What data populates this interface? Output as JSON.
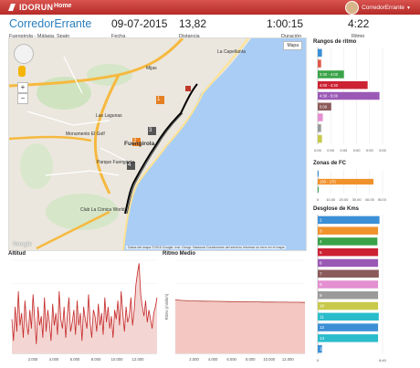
{
  "header": {
    "brand": "IDORUN",
    "nav_home": "Home",
    "user_name": "CorredorErrante"
  },
  "stats": {
    "name": "CorredorErrante",
    "location": "Fuengirola - Málaga, Spain",
    "date": "09-07-2015",
    "date_label": "Fecha",
    "distance": "13,82",
    "distance_label": "Distancia",
    "duration": "1:00:15",
    "duration_label": "Duración",
    "pace": "4:22",
    "pace_label": "Ritmo"
  },
  "map": {
    "type_button": "Mapa",
    "places": [
      "La Capellanía",
      "Fuengirola",
      "Mijas",
      "Las Lagunas",
      "Parque Fuengirola",
      "Club La Cónica World",
      "Monumento El Golf"
    ],
    "markers": [
      "1",
      "2",
      "3",
      "4"
    ],
    "footer": "Datos del mapa ©2015 Google, Inst. Geogr. Nacional   Condiciones del servicio   Informar un error en el mapa",
    "logo": "Google"
  },
  "panels": {
    "rangos_title": "Rangos de ritmo",
    "zonas_title": "Zonas de FC",
    "desglose_title": "Desglose de Kms",
    "altitud_title": "Altitud",
    "ritmo_title": "Ritmo Medio"
  },
  "chart_data": [
    {
      "type": "bar",
      "title": "Rangos de ritmo",
      "orientation": "horizontal",
      "categories": [
        "",
        "",
        "3:30 - 4:00",
        "4:00 - 4:30",
        "4:30 - 5:00",
        "5:00",
        "",
        "",
        ""
      ],
      "values": [
        0.5,
        0.4,
        3.1,
        5.9,
        7.3,
        1.6,
        0.6,
        0.4,
        0.5
      ],
      "colors": [
        "#3b8fd6",
        "#e05a4a",
        "#3aa34a",
        "#cc2233",
        "#9b59b6",
        "#8b5a5a",
        "#e38fd1",
        "#9a9a9a",
        "#c8c94a"
      ],
      "xticks": [
        "0:00",
        "0:00",
        "0:00",
        "0:00",
        "0:00",
        "0:00"
      ]
    },
    {
      "type": "bar",
      "title": "Zonas de FC",
      "orientation": "horizontal",
      "categories": [
        "",
        "150 - 170",
        ""
      ],
      "values": [
        0.3,
        43,
        0.3
      ],
      "colors": [
        "#3b8fd6",
        "#f0922b",
        "#3aa34a"
      ],
      "xticks": [
        "0",
        "10.00",
        "20.00",
        "30.00",
        "40.00",
        "50.00"
      ],
      "xlim": [
        0,
        50
      ]
    },
    {
      "type": "bar",
      "title": "Desglose de Kms",
      "orientation": "horizontal",
      "categories": [
        "2",
        "3",
        "4",
        "5",
        "6",
        "7",
        "8",
        "9",
        "10",
        "11",
        "12",
        "13",
        "14"
      ],
      "values": [
        4.4,
        4.3,
        4.25,
        4.3,
        4.3,
        4.35,
        4.3,
        4.3,
        4.3,
        4.35,
        4.3,
        4.3,
        0.3
      ],
      "colors": [
        "#3b8fd6",
        "#f0922b",
        "#3aa34a",
        "#cc2233",
        "#9b59b6",
        "#8b5a5a",
        "#e38fd1",
        "#9a9a9a",
        "#c8c94a",
        "#2bbccb",
        "#3b8fd6",
        "#2bbccb",
        "#3b8fd6"
      ],
      "xticks": [
        "0",
        "6:40"
      ]
    },
    {
      "type": "line",
      "title": "Altitud",
      "xticks": [
        "2.000",
        "4.000",
        "6.000",
        "8.000",
        "10.000",
        "12.000"
      ],
      "xlim": [
        0,
        13820
      ],
      "ylim": [
        0,
        60
      ],
      "values": [
        22,
        8,
        30,
        14,
        40,
        18,
        26,
        10,
        34,
        20,
        12,
        28,
        16,
        38,
        22,
        6,
        30,
        18,
        24,
        10,
        36,
        14,
        28,
        20,
        8,
        32,
        18,
        26,
        12,
        40,
        22,
        16,
        30,
        10,
        24,
        36,
        14,
        20,
        28,
        12,
        34,
        18,
        26,
        8,
        30,
        22,
        16,
        38,
        20,
        10,
        28,
        24,
        14,
        32,
        18,
        26,
        12,
        36,
        20,
        30,
        16,
        24,
        10,
        28,
        22,
        34,
        18,
        40,
        26,
        14,
        30,
        20,
        24,
        36,
        18,
        28,
        44,
        52,
        58,
        38,
        30,
        24,
        34,
        20,
        28,
        22,
        16,
        26,
        30,
        36
      ]
    },
    {
      "type": "area",
      "title": "Ritmo Medio",
      "ylabel": "Ritmo (min/km)",
      "xticks": [
        "2.000",
        "4.000",
        "6.000",
        "8.000",
        "10.000",
        "12.000"
      ],
      "xlim": [
        0,
        13820
      ],
      "values": [
        4.6,
        4.55,
        4.52,
        4.5,
        4.49,
        4.48,
        4.47,
        4.46,
        4.45,
        4.44,
        4.44,
        4.43,
        4.42,
        4.41,
        4.41,
        4.4,
        4.4,
        4.39,
        4.39,
        4.38
      ]
    }
  ]
}
